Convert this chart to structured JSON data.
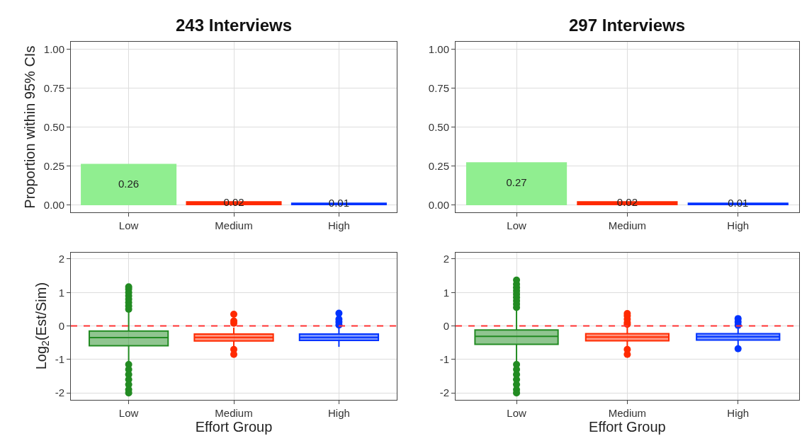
{
  "chart_data": [
    {
      "type": "bar",
      "title": "243 Interviews",
      "ylabel": "Proportion within 95% CIs",
      "categories": [
        "Low",
        "Medium",
        "High"
      ],
      "values": [
        0.26,
        0.02,
        0.01
      ],
      "colors": [
        "#90ee90",
        "#ff2a00",
        "#0033ff"
      ],
      "data_labels": true,
      "ylim": [
        -0.05,
        1.05
      ],
      "yticks": [
        {
          "value": 0,
          "label": "0.00"
        },
        {
          "value": 0.25,
          "label": "0.25"
        },
        {
          "value": 0.5,
          "label": "0.50"
        },
        {
          "value": 0.75,
          "label": "0.75"
        },
        {
          "value": 1,
          "label": "1.00"
        }
      ],
      "grid": true
    },
    {
      "type": "bar",
      "title": "297 Interviews",
      "categories": [
        "Low",
        "Medium",
        "High"
      ],
      "values": [
        0.27,
        0.02,
        0.01
      ],
      "colors": [
        "#90ee90",
        "#ff2a00",
        "#0033ff"
      ],
      "data_labels": true,
      "ylim": [
        -0.05,
        1.05
      ],
      "yticks": [
        {
          "value": 0,
          "label": "0.00"
        },
        {
          "value": 0.25,
          "label": "0.25"
        },
        {
          "value": 0.5,
          "label": "0.50"
        },
        {
          "value": 0.75,
          "label": "0.75"
        },
        {
          "value": 1,
          "label": "1.00"
        }
      ],
      "grid": true
    },
    {
      "type": "box",
      "xlabel": "Effort Group",
      "ylabel": "Log$_{2}$(Est/Sim)",
      "categories": [
        "Low",
        "Medium",
        "High"
      ],
      "colors": [
        "#228b22",
        "#ff2a00",
        "#0033ff"
      ],
      "boxes": [
        {
          "low": -1.1,
          "q1": -0.59,
          "median": -0.35,
          "q3": -0.15,
          "high": 0.45,
          "outliers": [
            0.5,
            0.6,
            0.7,
            0.8,
            0.9,
            1.0,
            1.1,
            1.17,
            -1.15,
            -1.3,
            -1.45,
            -1.6,
            -1.75,
            -1.9,
            -2.0
          ]
        },
        {
          "low": -0.6,
          "q1": -0.45,
          "median": -0.34,
          "q3": -0.24,
          "high": -0.05,
          "outliers": [
            0.35,
            0.15,
            0.08,
            -0.7,
            -0.85
          ]
        },
        {
          "low": -0.62,
          "q1": -0.43,
          "median": -0.34,
          "q3": -0.24,
          "high": -0.05,
          "outliers": [
            0.38,
            0.2,
            0.12,
            0.03
          ]
        }
      ],
      "ylim": [
        -2.2,
        2.2
      ],
      "yticks": [
        -2,
        -1,
        0,
        1,
        2
      ],
      "grid": true,
      "ref_lines": [
        {
          "axis": "y",
          "value": 0,
          "color": "#ff3333",
          "line_style": "dashed"
        }
      ]
    },
    {
      "type": "box",
      "xlabel": "Effort Group",
      "categories": [
        "Low",
        "Medium",
        "High"
      ],
      "colors": [
        "#228b22",
        "#ff2a00",
        "#0033ff"
      ],
      "boxes": [
        {
          "low": -1.15,
          "q1": -0.55,
          "median": -0.31,
          "q3": -0.12,
          "high": 0.5,
          "outliers": [
            0.55,
            0.65,
            0.75,
            0.85,
            0.95,
            1.05,
            1.15,
            1.25,
            1.37,
            -1.15,
            -1.3,
            -1.45,
            -1.6,
            -1.75,
            -1.9,
            -2.0
          ]
        },
        {
          "low": -0.6,
          "q1": -0.44,
          "median": -0.33,
          "q3": -0.23,
          "high": -0.02,
          "outliers": [
            0.37,
            0.3,
            0.2,
            0.1,
            0.05,
            -0.7,
            -0.85
          ]
        },
        {
          "low": -0.6,
          "q1": -0.42,
          "median": -0.32,
          "q3": -0.23,
          "high": -0.05,
          "outliers": [
            0.22,
            0.12,
            0.02,
            -0.68
          ]
        }
      ],
      "ylim": [
        -2.2,
        2.2
      ],
      "yticks": [
        -2,
        -1,
        0,
        1,
        2
      ],
      "grid": true,
      "ref_lines": [
        {
          "axis": "y",
          "value": 0,
          "color": "#ff3333",
          "line_style": "dashed"
        }
      ]
    }
  ]
}
